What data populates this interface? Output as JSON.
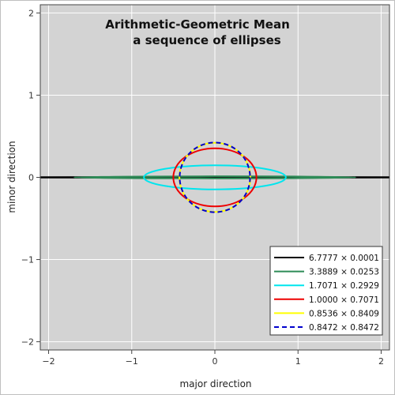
{
  "chart_data": {
    "type": "line",
    "title_lines": [
      "Arithmetic-Geometric Mean",
      "a sequence of ellipses"
    ],
    "xlabel": "major direction",
    "ylabel": "minor direction",
    "xlim": [
      -2.1,
      2.1
    ],
    "ylim": [
      -2.1,
      2.1
    ],
    "xticks": [
      -2,
      -1,
      0,
      1,
      2
    ],
    "yticks": [
      -2,
      -1,
      0,
      1,
      2
    ],
    "x_tick_labels": [
      "−2",
      "−1",
      "0",
      "1",
      "2"
    ],
    "y_tick_labels": [
      "−2",
      "−1",
      "0",
      "1",
      "2"
    ],
    "grid": true,
    "background": "#d3d3d3",
    "legend_position": "bottom-right",
    "series": [
      {
        "name": "6.7777 × 0.0001",
        "a": 6.7777,
        "b": 0.0001,
        "color": "#000000",
        "dash": false
      },
      {
        "name": "3.3889 × 0.0253",
        "a": 3.3889,
        "b": 0.0253,
        "color": "#2e8b57",
        "dash": false
      },
      {
        "name": "1.7071 × 0.2929",
        "a": 1.7071,
        "b": 0.2929,
        "color": "#00e5ee",
        "dash": false
      },
      {
        "name": "1.0000 × 0.7071",
        "a": 1.0,
        "b": 0.7071,
        "color": "#ee0000",
        "dash": false
      },
      {
        "name": "0.8536 × 0.8409",
        "a": 0.8536,
        "b": 0.8409,
        "color": "#ffff00",
        "dash": false
      },
      {
        "name": "0.8472 × 0.8472",
        "a": 0.8472,
        "b": 0.8472,
        "color": "#0000cd",
        "dash": true
      }
    ]
  }
}
